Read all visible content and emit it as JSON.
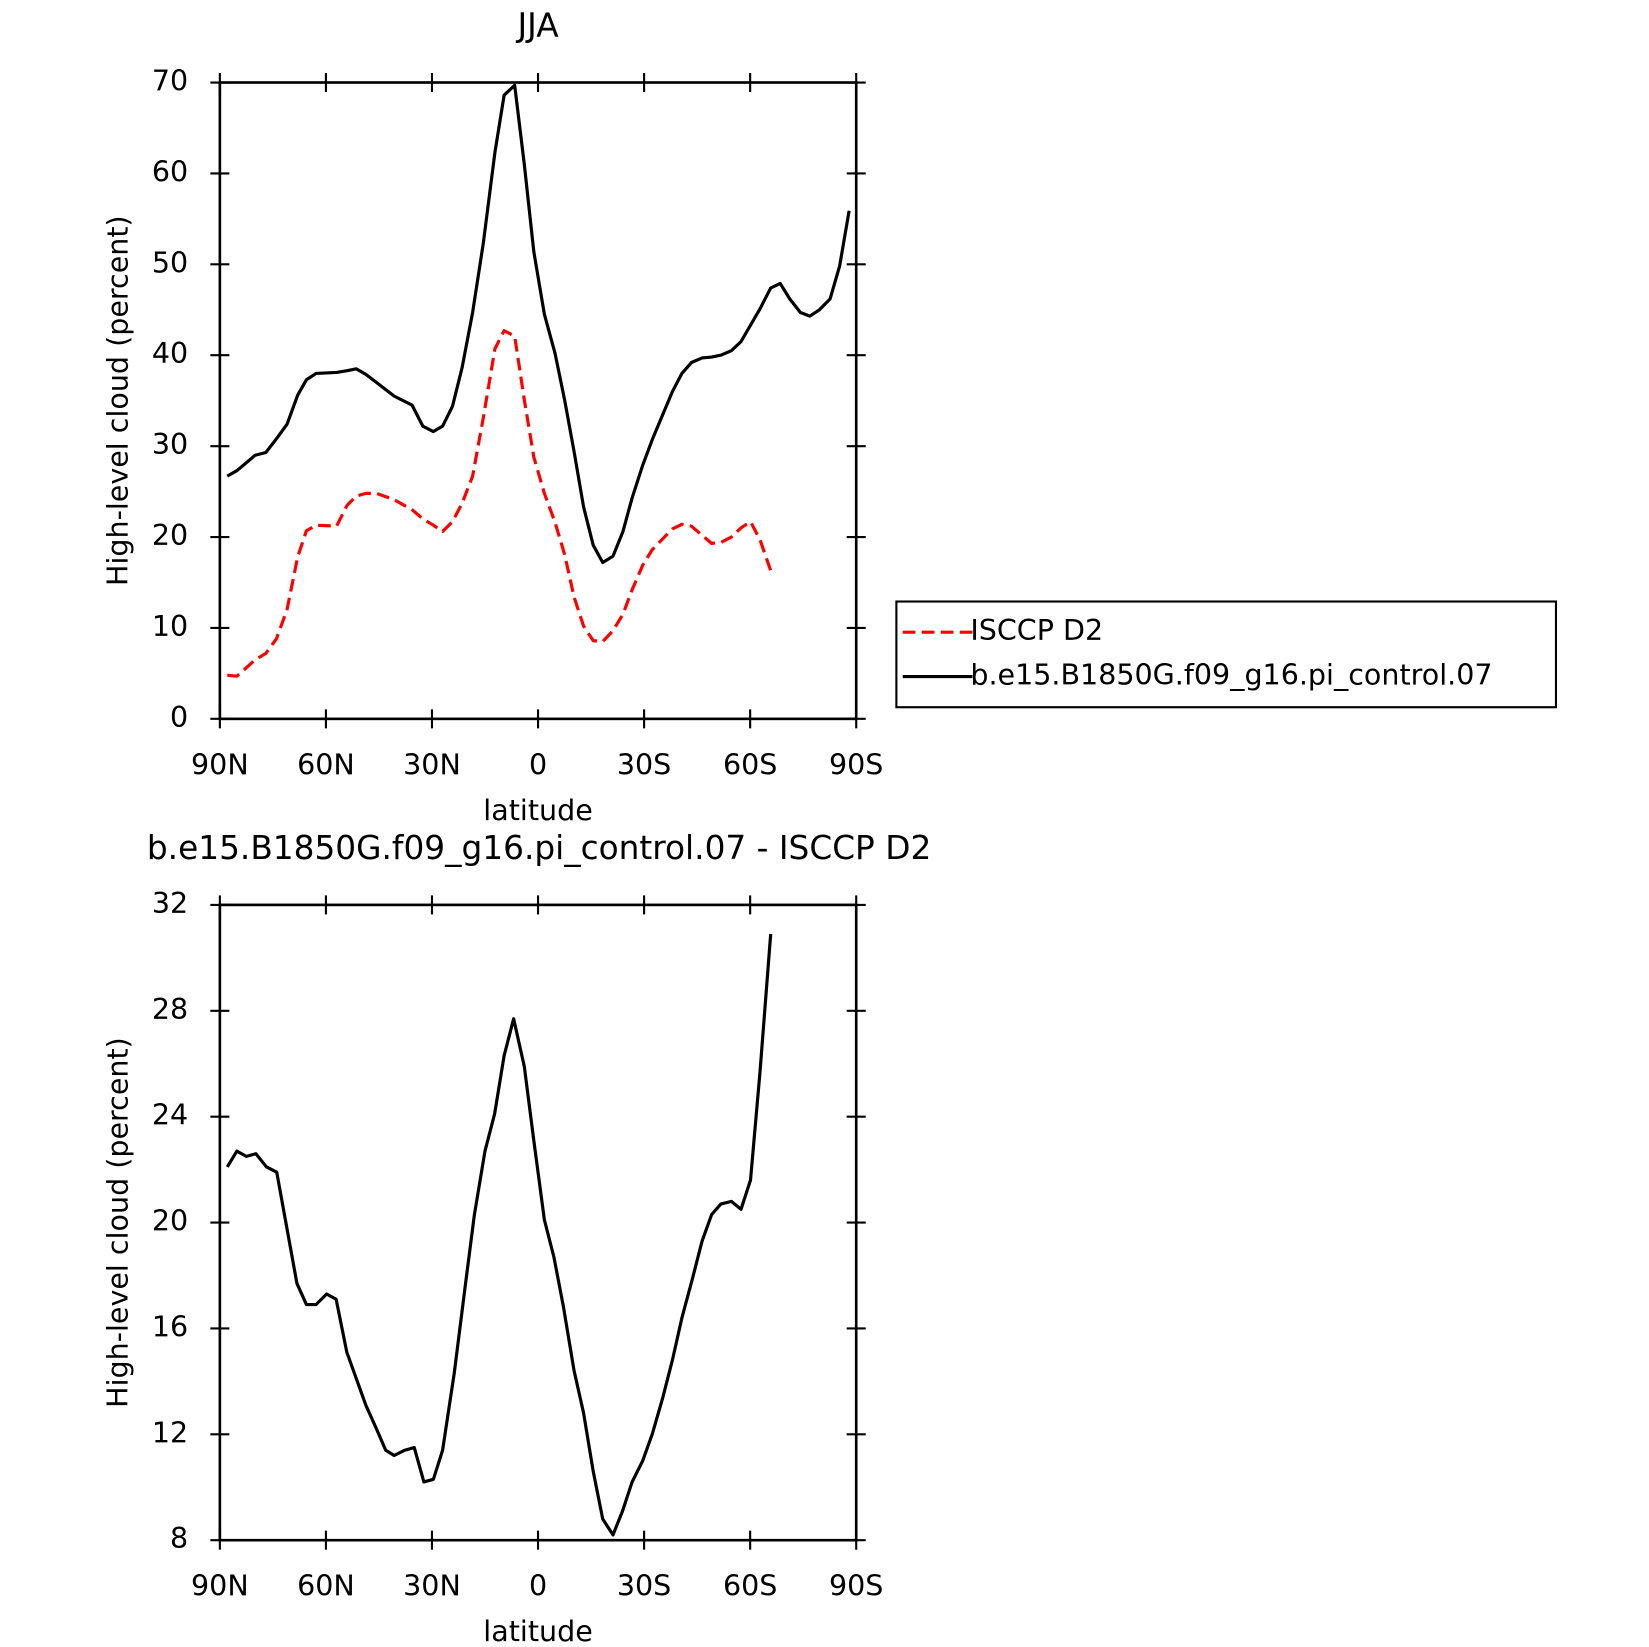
{
  "chart_data": [
    {
      "type": "line",
      "title": "JJA",
      "xlabel": "latitude",
      "ylabel": "High-level cloud (percent)",
      "xlim": [
        90,
        -90
      ],
      "xticks": [
        {
          "value": 90,
          "label": "90N"
        },
        {
          "value": 60,
          "label": "60N"
        },
        {
          "value": 30,
          "label": "30N"
        },
        0,
        {
          "value": -30,
          "label": "30S"
        },
        {
          "value": -60,
          "label": "60S"
        },
        {
          "value": -90,
          "label": "90S"
        }
      ],
      "ylim": [
        0,
        70
      ],
      "yticks": [
        0,
        10,
        20,
        30,
        40,
        50,
        60,
        70
      ],
      "legend": "right",
      "x": [
        87.9,
        85.2,
        80,
        77,
        74,
        71,
        68,
        65.5,
        62.8,
        57,
        54,
        51.4,
        48.7,
        45.7,
        40.7,
        35.6,
        32.6,
        29.6,
        27,
        24.2,
        21.5,
        18.5,
        15.5,
        12.2,
        9.6,
        6.6,
        3.9,
        1.2,
        -1.8,
        -4.8,
        -7.5,
        -10.2,
        -12.9,
        -15.6,
        -18.3,
        -21.2,
        -24,
        -26.6,
        -29.6,
        -32.3,
        -38,
        -40.7,
        -43.4,
        -46.4,
        -49.1,
        -51.7,
        -54.7,
        -57.4,
        -60.1,
        -62.8,
        -65.8,
        -68.5,
        -71.2,
        -74.2,
        -76.9,
        -79.6,
        -82.6,
        -85.3,
        -88
      ],
      "series": [
        {
          "name": "ISCCP D2",
          "color": "#ff0000",
          "linestyle": "dashed",
          "values": [
            4.8,
            4.7,
            6.5,
            7.2,
            8.8,
            12,
            17.8,
            20.7,
            21.3,
            21.2,
            23.5,
            24.5,
            24.8,
            24.8,
            24.1,
            23,
            22,
            21.3,
            20.6,
            21.7,
            23.7,
            26.7,
            33.1,
            40.7,
            42.7,
            42.1,
            35.1,
            28.8,
            24.8,
            21.6,
            18.1,
            13.4,
            10.2,
            8.6,
            8.5,
            9.7,
            11.5,
            14.2,
            16.9,
            18.6,
            20.9,
            21.4,
            21.2,
            20.2,
            19.3,
            19.4,
            20,
            21,
            21.7,
            19.7,
            16.3,
            null,
            null,
            null,
            null,
            null,
            null,
            null,
            null
          ]
        },
        {
          "name": "b.e15.B1850G.f09_g16.pi_control.07",
          "color": "#000000",
          "linestyle": "solid",
          "values": [
            26.7,
            27.3,
            29.0,
            29.3,
            30.8,
            32.4,
            35.6,
            37.3,
            38.0,
            38.1,
            38.3,
            38.5,
            37.9,
            37.0,
            35.5,
            34.5,
            32.2,
            31.6,
            32.2,
            34.4,
            38.6,
            44.7,
            52.3,
            62.3,
            68.6,
            69.7,
            61,
            51.4,
            44.5,
            40.2,
            35.1,
            29.4,
            23.3,
            19.1,
            17.2,
            17.9,
            20.6,
            24.3,
            27.9,
            30.7,
            36.0,
            38.0,
            39.2,
            39.7,
            39.8,
            40.0,
            40.5,
            41.5,
            43.3,
            45.1,
            47.4,
            47.9,
            46.2,
            44.7,
            44.3,
            45,
            46.2,
            49.8,
            55.9
          ]
        }
      ]
    },
    {
      "type": "line",
      "title": "b.e15.B1850G.f09_g16.pi_control.07 - ISCCP D2",
      "xlabel": "latitude",
      "ylabel": "High-level cloud (percent)",
      "xlim": [
        90,
        -90
      ],
      "xticks": [
        {
          "value": 90,
          "label": "90N"
        },
        {
          "value": 60,
          "label": "60N"
        },
        {
          "value": 30,
          "label": "30N"
        },
        0,
        {
          "value": -30,
          "label": "30S"
        },
        {
          "value": -60,
          "label": "60S"
        },
        {
          "value": -90,
          "label": "90S"
        }
      ],
      "ylim": [
        8,
        32
      ],
      "yticks": [
        8,
        12,
        16,
        20,
        24,
        28,
        32
      ],
      "x": [
        87.9,
        85.2,
        82.5,
        79.8,
        76.8,
        73.9,
        71.2,
        68.2,
        65.5,
        62.8,
        59.8,
        57.1,
        54.1,
        51.4,
        48.7,
        45.7,
        43.1,
        40.7,
        37.7,
        35.0,
        32.3,
        29.6,
        27.0,
        23.7,
        20.7,
        18.0,
        15.0,
        12.3,
        9.6,
        6.9,
        3.9,
        1.2,
        -1.8,
        -4.5,
        -7.2,
        -10.2,
        -12.9,
        -15.6,
        -18.3,
        -21.2,
        -23.9,
        -26.6,
        -29.6,
        -32.3,
        -35.3,
        -38.0,
        -40.7,
        -43.7,
        -46.4,
        -49.1,
        -51.7,
        -54.7,
        -57.4,
        -60.1,
        -62.8,
        -65.8
      ],
      "series": [
        {
          "color": "#000000",
          "linestyle": "solid",
          "values": [
            22.1,
            22.7,
            22.5,
            22.6,
            22.1,
            21.9,
            19.9,
            17.7,
            16.9,
            16.9,
            17.3,
            17.1,
            15.1,
            14.1,
            13.1,
            12.2,
            11.4,
            11.2,
            11.4,
            11.5,
            10.2,
            10.3,
            11.4,
            14.3,
            17.5,
            20.3,
            22.7,
            24.1,
            26.3,
            27.7,
            25.9,
            23.1,
            20.1,
            18.7,
            16.8,
            14.4,
            12.8,
            10.6,
            8.8,
            8.2,
            9.1,
            10.2,
            11.0,
            12.0,
            13.4,
            14.8,
            16.4,
            17.9,
            19.3,
            20.3,
            20.7,
            20.8,
            20.5,
            21.6,
            25.7,
            30.9
          ]
        }
      ]
    }
  ]
}
